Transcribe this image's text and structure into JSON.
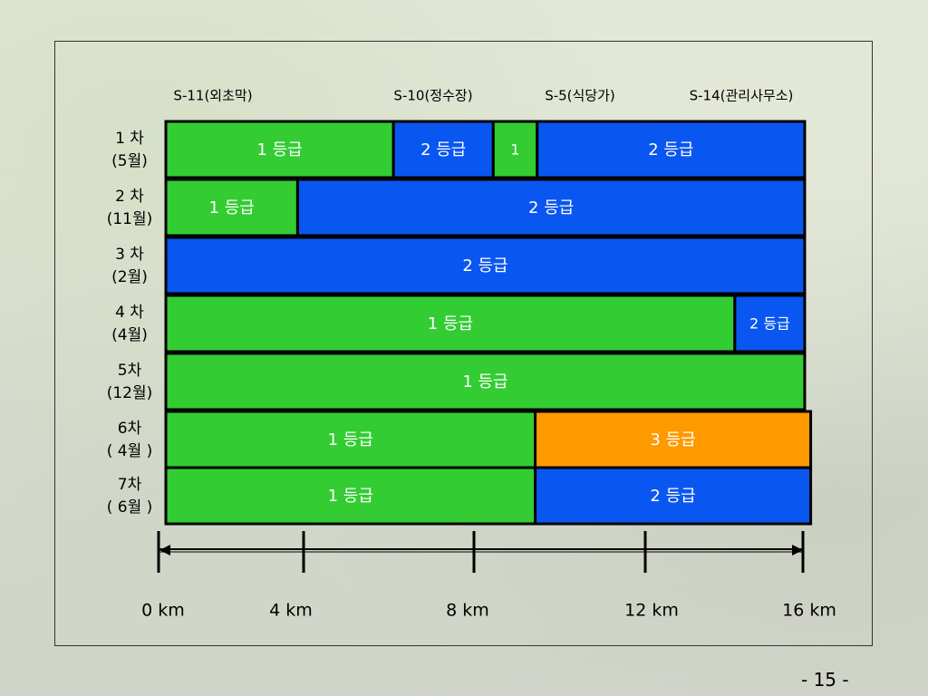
{
  "page_number": "- 15 -",
  "chart_data": {
    "type": "bar",
    "orientation": "horizontal-stacked",
    "xlim": [
      0,
      16
    ],
    "x_ticks": [
      {
        "value": 0,
        "label": "0 km"
      },
      {
        "value": 4,
        "label": "4 km"
      },
      {
        "value": 8,
        "label": "8 km"
      },
      {
        "value": 12,
        "label": "12 km"
      },
      {
        "value": 16,
        "label": "16 km"
      }
    ],
    "stations": [
      {
        "label": "S-11(외초막)",
        "km": 0
      },
      {
        "label": "S-10(정수장)",
        "km": 5.7
      },
      {
        "label": "S-5(식당가)",
        "km": 9.2
      },
      {
        "label": "S-14(관리사무소)",
        "km": 16
      }
    ],
    "grade_colors": {
      "1": "#33cc33",
      "2": "#0a56f0",
      "3": "#ff9900"
    },
    "rows": [
      {
        "label_lines": [
          "1 차",
          "(5월)"
        ],
        "segments": [
          {
            "start": 0,
            "end": 5.7,
            "grade": "1",
            "label": "1 등급"
          },
          {
            "start": 5.7,
            "end": 8.2,
            "grade": "2",
            "label": "2 등급"
          },
          {
            "start": 8.2,
            "end": 9.3,
            "grade": "1",
            "label": "1"
          },
          {
            "start": 9.3,
            "end": 16,
            "grade": "2",
            "label": "2 등급"
          }
        ]
      },
      {
        "label_lines": [
          "2 차",
          "(11월)"
        ],
        "segments": [
          {
            "start": 0,
            "end": 3.3,
            "grade": "1",
            "label": "1 등급"
          },
          {
            "start": 3.3,
            "end": 16,
            "grade": "2",
            "label": "2 등급"
          }
        ]
      },
      {
        "label_lines": [
          "3 차",
          "(2월)"
        ],
        "segments": [
          {
            "start": 0,
            "end": 16,
            "grade": "2",
            "label": "2 등급"
          }
        ]
      },
      {
        "label_lines": [
          "4 차",
          "(4월)"
        ],
        "segments": [
          {
            "start": 0,
            "end": 14.25,
            "grade": "1",
            "label": "1 등급"
          },
          {
            "start": 14.25,
            "end": 16,
            "grade": "2",
            "label": "2 등급"
          }
        ]
      },
      {
        "label_lines": [
          "5차",
          "(12월)"
        ],
        "segments": [
          {
            "start": 0,
            "end": 16,
            "grade": "1",
            "label": "1 등급"
          }
        ]
      },
      {
        "label_lines": [
          "6차",
          "( 4월 )"
        ],
        "segments": [
          {
            "start": 0,
            "end": 9.25,
            "grade": "1",
            "label": "1 등급"
          },
          {
            "start": 9.25,
            "end": 16.15,
            "grade": "3",
            "label": "3 등급"
          }
        ]
      },
      {
        "label_lines": [
          "7차",
          "( 6월 )"
        ],
        "segments": [
          {
            "start": 0,
            "end": 9.25,
            "grade": "1",
            "label": "1 등급"
          },
          {
            "start": 9.25,
            "end": 16.15,
            "grade": "2",
            "label": "2 등급"
          }
        ]
      }
    ]
  }
}
